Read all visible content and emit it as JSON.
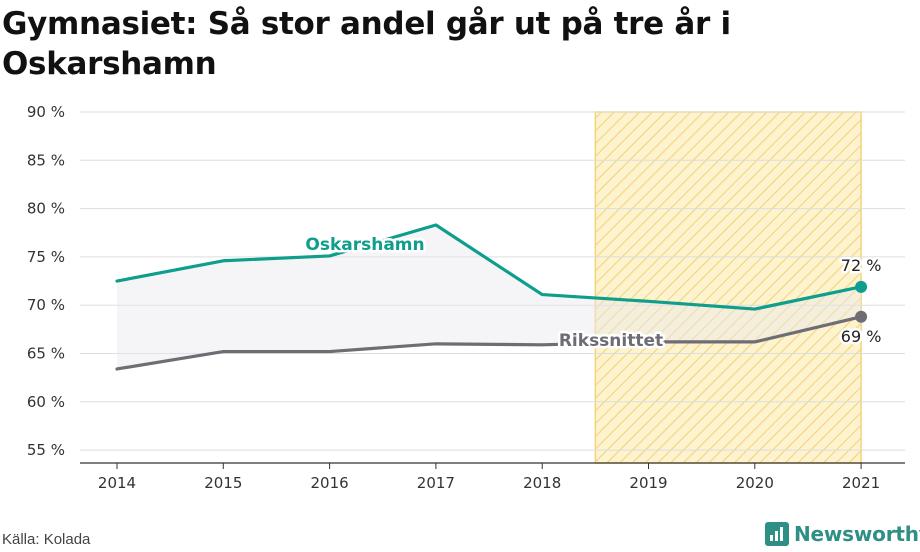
{
  "title": "Gymnasiet: Så stor andel går ut på tre år i Oskarshamn",
  "source": "Källa: Kolada",
  "brand": "Newsworthy",
  "colors": {
    "oskarshamn": "#0f9e8c",
    "riket": "#6e6d74",
    "highlight_fill": "#fdf3cf",
    "highlight_stripe": "#f4d37a",
    "grid": "#dddddd",
    "brand": "#2e8f85"
  },
  "chart_data": {
    "type": "line",
    "categories": [
      "2014",
      "2015",
      "2016",
      "2017",
      "2018",
      "2019",
      "2020",
      "2021"
    ],
    "series": [
      {
        "name": "Oskarshamn",
        "values": [
          72.5,
          74.6,
          75.1,
          78.3,
          71.1,
          70.4,
          69.6,
          71.9
        ],
        "end_label": "72 %"
      },
      {
        "name": "Rikssnittet",
        "values": [
          63.4,
          65.2,
          65.2,
          66.0,
          65.9,
          66.2,
          66.2,
          68.8
        ],
        "end_label": "69 %"
      }
    ],
    "y_ticks": [
      "90 %",
      "85 %",
      "80 %",
      "75 %",
      "70 %",
      "65 %",
      "60 %",
      "55 %"
    ],
    "ylim": [
      54,
      90
    ],
    "highlight_range": [
      "2019",
      "2021"
    ],
    "grid": true,
    "legend": "inline labels"
  }
}
